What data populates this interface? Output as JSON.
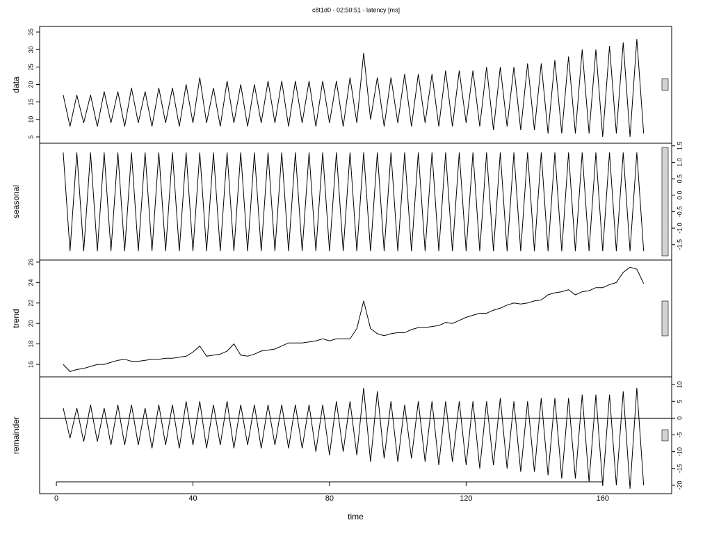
{
  "chart_data": [
    {
      "type": "line",
      "title": "c8t1d0 - 02:50:51 - latency [ms]",
      "ylabel": "data",
      "ytick_side": "left",
      "xlim": [
        -4.9,
        180.2
      ],
      "ylim": [
        3.2,
        36.6
      ],
      "yticks": [
        5,
        10,
        15,
        20,
        25,
        30,
        35
      ],
      "color": "#000000",
      "x": [
        2,
        4,
        6,
        8,
        10,
        12,
        14,
        16,
        18,
        20,
        22,
        24,
        26,
        28,
        30,
        32,
        34,
        36,
        38,
        40,
        42,
        44,
        46,
        48,
        50,
        52,
        54,
        56,
        58,
        60,
        62,
        64,
        66,
        68,
        70,
        72,
        74,
        76,
        78,
        80,
        82,
        84,
        86,
        88,
        90,
        92,
        94,
        96,
        98,
        100,
        102,
        104,
        106,
        108,
        110,
        112,
        114,
        116,
        118,
        120,
        122,
        124,
        126,
        128,
        130,
        132,
        134,
        136,
        138,
        140,
        142,
        144,
        146,
        148,
        150,
        152,
        154,
        156,
        158,
        160,
        162,
        164,
        166,
        168,
        170,
        172
      ],
      "values": [
        17,
        8,
        17,
        9,
        17,
        8,
        18,
        9,
        18,
        8,
        19,
        9,
        18,
        8,
        19,
        9,
        19,
        8,
        20,
        9,
        22,
        9,
        19,
        8,
        21,
        9,
        20,
        8,
        20,
        9,
        21,
        9,
        21,
        8,
        21,
        9,
        21,
        8,
        21,
        9,
        21,
        8,
        22,
        9,
        29,
        10,
        22,
        8,
        22,
        9,
        23,
        8,
        23,
        9,
        23,
        8,
        24,
        8,
        24,
        9,
        24,
        8,
        25,
        7,
        25,
        8,
        25,
        7,
        26,
        7,
        26,
        6,
        27,
        6,
        28,
        6,
        30,
        6,
        30,
        5,
        31,
        6,
        32,
        5,
        33,
        6
      ]
    },
    {
      "type": "line",
      "ylabel": "seasonal",
      "ytick_side": "right",
      "xlim": [
        -4.9,
        180.2
      ],
      "ylim": [
        -1.97,
        1.58
      ],
      "yticks": [
        {
          "value": -1.5,
          "label": "-1.5"
        },
        {
          "value": -1,
          "label": "-1.0"
        },
        {
          "value": -0.5,
          "label": "-0.5"
        },
        {
          "value": 0,
          "label": "0.0"
        },
        {
          "value": 0.5,
          "label": "0.5"
        },
        {
          "value": 1,
          "label": "1.0"
        },
        {
          "value": 1.5,
          "label": "1.5"
        }
      ],
      "color": "#000000",
      "x": [
        2,
        4,
        6,
        8,
        10,
        12,
        14,
        16,
        18,
        20,
        22,
        24,
        26,
        28,
        30,
        32,
        34,
        36,
        38,
        40,
        42,
        44,
        46,
        48,
        50,
        52,
        54,
        56,
        58,
        60,
        62,
        64,
        66,
        68,
        70,
        72,
        74,
        76,
        78,
        80,
        82,
        84,
        86,
        88,
        90,
        92,
        94,
        96,
        98,
        100,
        102,
        104,
        106,
        108,
        110,
        112,
        114,
        116,
        118,
        120,
        122,
        124,
        126,
        128,
        130,
        132,
        134,
        136,
        138,
        140,
        142,
        144,
        146,
        148,
        150,
        152,
        154,
        156,
        158,
        160,
        162,
        164,
        166,
        168,
        170,
        172
      ],
      "values": [
        1.3,
        -1.7,
        1.3,
        -1.7,
        1.3,
        -1.7,
        1.3,
        -1.7,
        1.3,
        -1.7,
        1.3,
        -1.7,
        1.3,
        -1.7,
        1.3,
        -1.7,
        1.3,
        -1.7,
        1.3,
        -1.7,
        1.3,
        -1.7,
        1.3,
        -1.7,
        1.3,
        -1.7,
        1.3,
        -1.7,
        1.3,
        -1.7,
        1.3,
        -1.7,
        1.3,
        -1.7,
        1.3,
        -1.7,
        1.3,
        -1.7,
        1.3,
        -1.7,
        1.3,
        -1.7,
        1.3,
        -1.7,
        1.3,
        -1.7,
        1.3,
        -1.7,
        1.3,
        -1.7,
        1.3,
        -1.7,
        1.3,
        -1.7,
        1.3,
        -1.7,
        1.3,
        -1.7,
        1.3,
        -1.7,
        1.3,
        -1.7,
        1.3,
        -1.7,
        1.3,
        -1.7,
        1.3,
        -1.7,
        1.3,
        -1.7,
        1.3,
        -1.7,
        1.3,
        -1.7,
        1.3,
        -1.7,
        1.3,
        -1.7,
        1.3,
        -1.7,
        1.3,
        -1.7,
        1.3,
        -1.7,
        1.3,
        -1.7
      ]
    },
    {
      "type": "line",
      "ylabel": "trend",
      "ytick_side": "left",
      "xlim": [
        -4.9,
        180.2
      ],
      "ylim": [
        14.78,
        26.2
      ],
      "yticks": [
        16,
        18,
        20,
        22,
        24,
        26
      ],
      "color": "#000000",
      "x": [
        2,
        4,
        6,
        8,
        10,
        12,
        14,
        16,
        18,
        20,
        22,
        24,
        26,
        28,
        30,
        32,
        34,
        36,
        38,
        40,
        42,
        44,
        46,
        48,
        50,
        52,
        54,
        56,
        58,
        60,
        62,
        64,
        66,
        68,
        70,
        72,
        74,
        76,
        78,
        80,
        82,
        84,
        86,
        88,
        90,
        92,
        94,
        96,
        98,
        100,
        102,
        104,
        106,
        108,
        110,
        112,
        114,
        116,
        118,
        120,
        122,
        124,
        126,
        128,
        130,
        132,
        134,
        136,
        138,
        140,
        142,
        144,
        146,
        148,
        150,
        152,
        154,
        156,
        158,
        160,
        162,
        164,
        166,
        168,
        170,
        172
      ],
      "values": [
        16.0,
        15.3,
        15.5,
        15.6,
        15.8,
        16.0,
        16.0,
        16.2,
        16.4,
        16.5,
        16.3,
        16.3,
        16.4,
        16.5,
        16.5,
        16.6,
        16.6,
        16.7,
        16.8,
        17.2,
        17.8,
        16.8,
        16.9,
        17.0,
        17.3,
        18.0,
        16.9,
        16.8,
        17.0,
        17.3,
        17.4,
        17.5,
        17.8,
        18.1,
        18.1,
        18.1,
        18.2,
        18.3,
        18.5,
        18.3,
        18.5,
        18.5,
        18.5,
        19.5,
        22.2,
        19.5,
        19.0,
        18.8,
        19.0,
        19.1,
        19.1,
        19.4,
        19.6,
        19.6,
        19.7,
        19.8,
        20.1,
        20.0,
        20.3,
        20.6,
        20.8,
        21.0,
        21.0,
        21.3,
        21.5,
        21.8,
        22.0,
        21.9,
        22.0,
        22.2,
        22.3,
        22.8,
        23.0,
        23.1,
        23.3,
        22.8,
        23.1,
        23.2,
        23.5,
        23.5,
        23.8,
        24.0,
        25.0,
        25.5,
        25.3,
        23.9
      ]
    },
    {
      "type": "line",
      "ylabel": "remainder",
      "ytick_side": "right",
      "xlabel": "time",
      "xlim": [
        -4.9,
        180.2
      ],
      "xticks": [
        0,
        40,
        80,
        120,
        160
      ],
      "ylim": [
        -22.5,
        12.3
      ],
      "yticks": [
        -20,
        -15,
        -10,
        -5,
        0,
        5,
        10
      ],
      "color": "#000000",
      "x": [
        2,
        4,
        6,
        8,
        10,
        12,
        14,
        16,
        18,
        20,
        22,
        24,
        26,
        28,
        30,
        32,
        34,
        36,
        38,
        40,
        42,
        44,
        46,
        48,
        50,
        52,
        54,
        56,
        58,
        60,
        62,
        64,
        66,
        68,
        70,
        72,
        74,
        76,
        78,
        80,
        82,
        84,
        86,
        88,
        90,
        92,
        94,
        96,
        98,
        100,
        102,
        104,
        106,
        108,
        110,
        112,
        114,
        116,
        118,
        120,
        122,
        124,
        126,
        128,
        130,
        132,
        134,
        136,
        138,
        140,
        142,
        144,
        146,
        148,
        150,
        152,
        154,
        156,
        158,
        160,
        162,
        164,
        166,
        168,
        170,
        172
      ],
      "values": [
        3,
        -6,
        3,
        -7,
        4,
        -7,
        3,
        -8,
        4,
        -8,
        4,
        -8,
        3,
        -9,
        4,
        -8,
        4,
        -9,
        5,
        -8,
        5,
        -9,
        4,
        -8,
        5,
        -9,
        4,
        -8,
        4,
        -9,
        4,
        -8,
        4,
        -9,
        4,
        -9,
        4,
        -10,
        4,
        -11,
        5,
        -10,
        5,
        -11,
        9,
        -13,
        8,
        -12,
        5,
        -13,
        4,
        -12,
        5,
        -13,
        5,
        -14,
        5,
        -13,
        5,
        -14,
        5,
        -15,
        5,
        -14,
        6,
        -15,
        5,
        -16,
        5,
        -16,
        6,
        -17,
        6,
        -18,
        6,
        -18,
        7,
        -19,
        7,
        -20,
        7,
        -20,
        8,
        -21,
        9,
        -20
      ]
    }
  ]
}
